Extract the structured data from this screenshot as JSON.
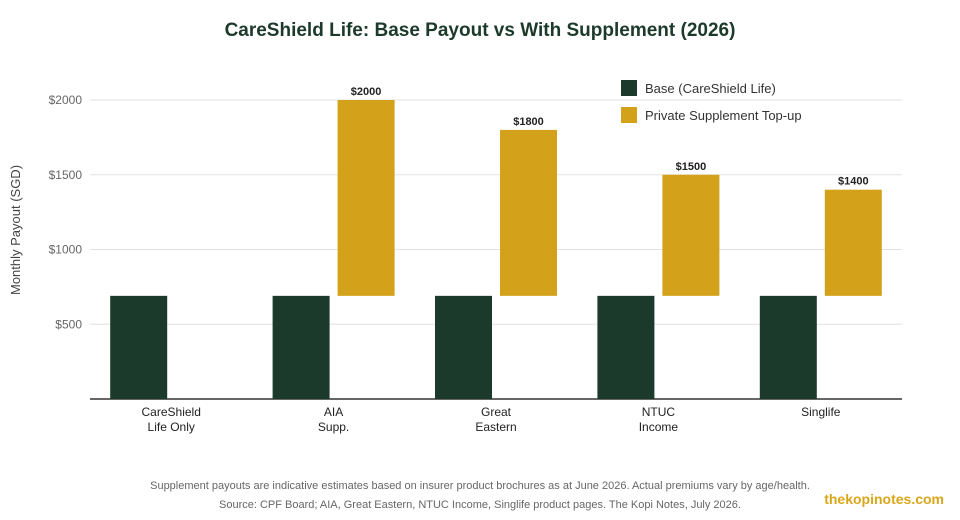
{
  "chart_data": {
    "type": "bar",
    "title": "CareShield Life: Base Payout vs With Supplement (2026)",
    "ylabel": "Monthly Payout (SGD)",
    "xlabel": "",
    "ylim": [
      0,
      2000
    ],
    "yticks": [
      500,
      1000,
      1500,
      2000
    ],
    "ytick_labels": [
      "$500",
      "$1000",
      "$1500",
      "$2000"
    ],
    "grid": true,
    "legend_position": "top-right",
    "categories": [
      "CareShield\nLife Only",
      "AIA\nSupp.",
      "Great\nEastern",
      "NTUC\nIncome",
      "Singlife"
    ],
    "series": [
      {
        "name": "Base (CareShield Life)",
        "color": "#1c3a2b",
        "values": [
          690,
          690,
          690,
          690,
          690
        ]
      },
      {
        "name": "Private Supplement Top-up",
        "color": "#d4a11a",
        "values": [
          null,
          2000,
          1800,
          1500,
          1400
        ],
        "base": [
          null,
          690,
          690,
          690,
          690
        ],
        "labels": [
          null,
          "$2000",
          "$1800",
          "$1500",
          "$1400"
        ]
      }
    ]
  },
  "notes": [
    "Supplement payouts are indicative estimates based on insurer product brochures as at June 2026. Actual premiums vary by age/health.",
    "Source: CPF Board; AIA, Great Eastern, NTUC Income, Singlife product pages. The Kopi Notes, July 2026."
  ],
  "brand": "thekopinotes.com"
}
